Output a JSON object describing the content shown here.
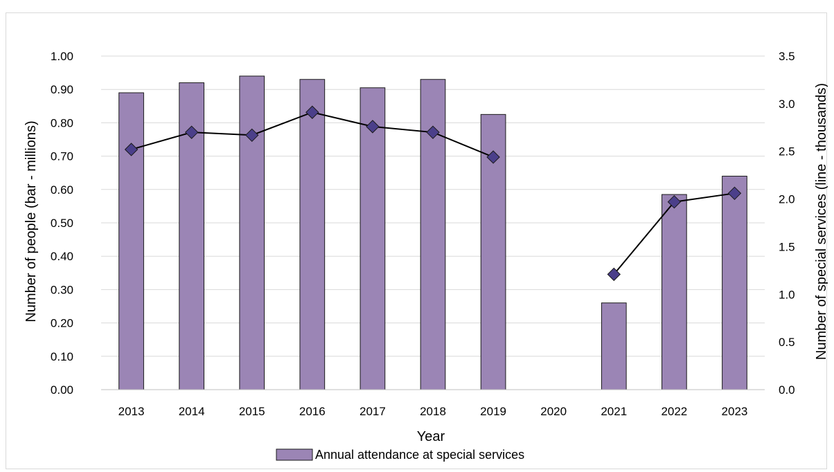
{
  "chart_data": {
    "type": "bar+line",
    "categories": [
      "2013",
      "2014",
      "2015",
      "2016",
      "2017",
      "2018",
      "2019",
      "2020",
      "2021",
      "2022",
      "2023"
    ],
    "bar_series": {
      "name": "Annual attendance at special services",
      "values": [
        0.89,
        0.92,
        0.94,
        0.93,
        0.905,
        0.93,
        0.825,
        null,
        0.26,
        0.585,
        0.64
      ],
      "color": "#9b85b5",
      "border": "#1a1a1a"
    },
    "line_series": {
      "values": [
        2.52,
        2.7,
        2.67,
        2.91,
        2.76,
        2.7,
        2.44,
        null,
        1.21,
        1.97,
        2.06
      ],
      "color": "#000000",
      "marker_color": "#4b3f8a"
    },
    "xlabel": "Year",
    "ylabel_left": "Number of people (bar - millions)",
    "ylabel_right": "Number of special services (line - thousands)",
    "ylim_left": [
      0,
      1.0
    ],
    "ylim_right": [
      0,
      3.5
    ],
    "yticks_left": [
      "0.00",
      "0.10",
      "0.20",
      "0.30",
      "0.40",
      "0.50",
      "0.60",
      "0.70",
      "0.80",
      "0.90",
      "1.00"
    ],
    "yticks_right": [
      "0.0",
      "0.5",
      "1.0",
      "1.5",
      "2.0",
      "2.5",
      "3.0",
      "3.5"
    ],
    "grid": true,
    "legend_position": "bottom"
  }
}
